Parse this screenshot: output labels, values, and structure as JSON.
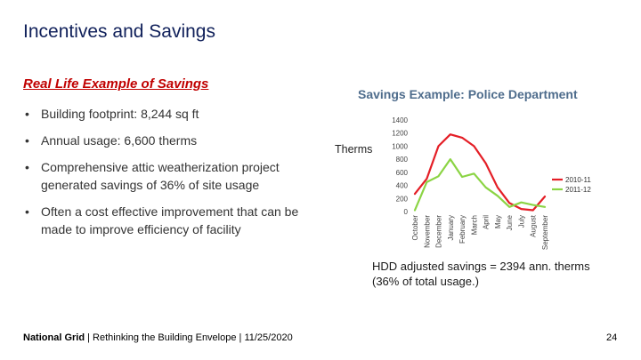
{
  "slide": {
    "title": "Incentives and Savings",
    "subtitle": "Real Life Example of Savings",
    "bullet_symbol": "•",
    "bullets": [
      "Building footprint: 8,244 sq ft",
      "Annual usage: 6,600 therms",
      "Comprehensive attic weatherization project generated savings of 36% of site usage",
      "Often a cost effective improvement that can be made to improve efficiency of facility"
    ],
    "footer": {
      "brand": "National Grid",
      "rest": " | Rethinking the Building Envelope | 11/25/2020"
    },
    "page_number": "24",
    "colors": {
      "title": "#10205a",
      "subtitle": "#c00000",
      "chart_title": "#4e6c8c"
    }
  },
  "chart_data": {
    "type": "line",
    "title": "Savings Example: Police Department",
    "ylabel": "Therms",
    "ylim": [
      0,
      1400
    ],
    "yticks": [
      0,
      200,
      400,
      600,
      800,
      1000,
      1200,
      1400
    ],
    "categories": [
      "October",
      "November",
      "December",
      "January",
      "February",
      "March",
      "April",
      "May",
      "June",
      "July",
      "August",
      "September"
    ],
    "series": [
      {
        "name": "2010-11",
        "color": "#e41e26",
        "values": [
          270,
          500,
          1000,
          1180,
          1130,
          1000,
          740,
          370,
          130,
          40,
          20,
          230
        ]
      },
      {
        "name": "2011-12",
        "color": "#8bd444",
        "values": [
          20,
          450,
          540,
          800,
          530,
          580,
          370,
          240,
          70,
          140,
          100,
          70
        ]
      }
    ],
    "legend_position": "right",
    "grid": false,
    "annotation": [
      "HDD adjusted savings = 2394 ann. therms",
      "(36% of total usage.)"
    ]
  }
}
